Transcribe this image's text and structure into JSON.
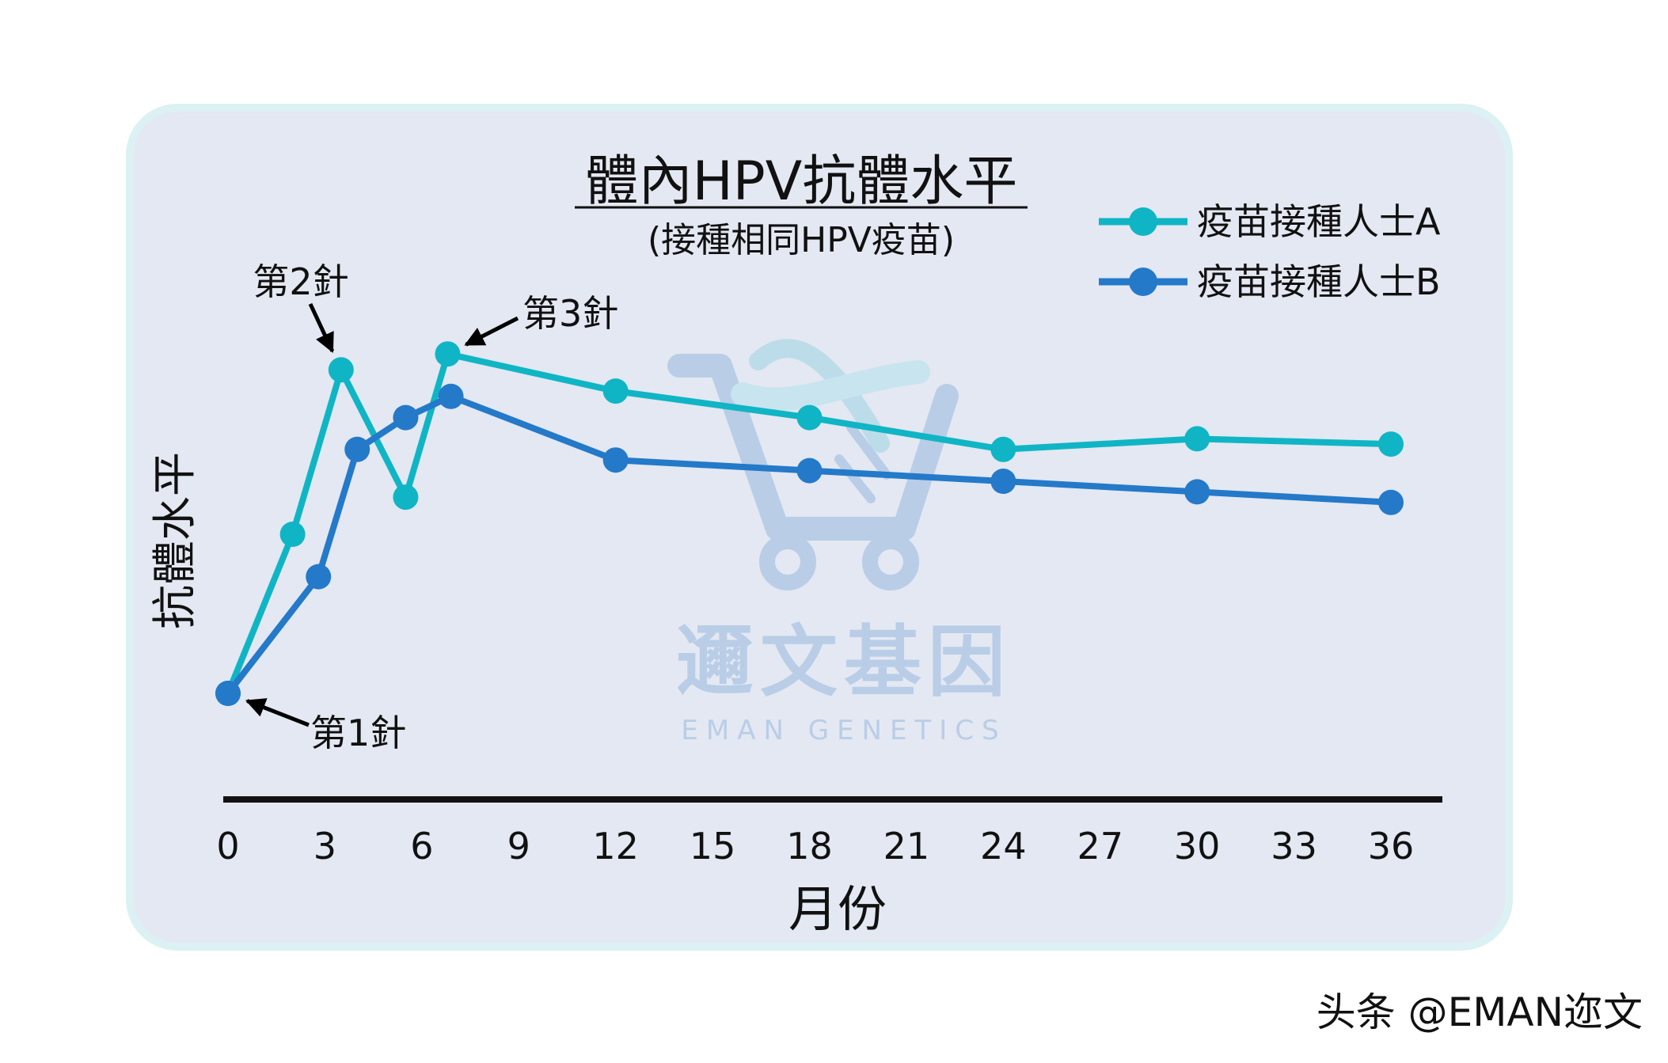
{
  "chart_data": {
    "type": "line",
    "title": "體內HPV抗體水平",
    "subtitle": "(接種相同HPV疫苗)",
    "xlabel": "月份",
    "ylabel": "抗體水平",
    "xlim": [
      0,
      36
    ],
    "xticks": [
      0,
      3,
      6,
      9,
      12,
      15,
      18,
      21,
      24,
      27,
      30,
      33,
      36
    ],
    "ylim": [
      0,
      100
    ],
    "y_ticks_shown": false,
    "grid": false,
    "legend_position": "top-right",
    "series": [
      {
        "name": "疫苗接種人士A",
        "color": "#10b5c5",
        "x": [
          0,
          2,
          3.5,
          5.5,
          6.8,
          12,
          18,
          24,
          30,
          36
        ],
        "y": [
          20,
          50,
          81,
          57,
          84,
          77,
          72,
          66,
          68,
          67
        ]
      },
      {
        "name": "疫苗接種人士B",
        "color": "#2479c9",
        "x": [
          0,
          2.8,
          4,
          5.5,
          6.9,
          12,
          18,
          24,
          30,
          36
        ],
        "y": [
          20,
          42,
          66,
          72,
          76,
          64,
          62,
          60,
          58,
          56
        ]
      }
    ],
    "annotations": [
      {
        "text": "第1針",
        "x": 0,
        "series": 1
      },
      {
        "text": "第2針",
        "x": 3.5,
        "series": 0
      },
      {
        "text": "第3針",
        "x": 6.8,
        "series": 0
      }
    ]
  },
  "watermark": {
    "name_zh": "邇文基因",
    "name_en": "EMAN GENETICS",
    "icon": "cart-dna-logo-icon",
    "color": "#b2c9e6"
  },
  "credit": "头条 @EMAN迩文",
  "colors": {
    "panel_fill": "#e3e8f2",
    "panel_border": "#dcf1f3",
    "axis": "#111111"
  }
}
